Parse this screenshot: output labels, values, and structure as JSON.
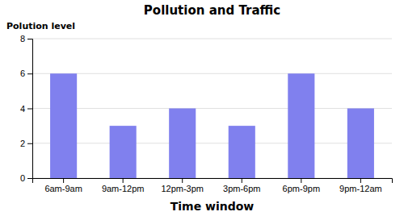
{
  "chart_data": {
    "type": "bar",
    "title": "Pollution and Traffic",
    "xlabel": "Time window",
    "ylabel": "Polution level",
    "categories": [
      "6am-9am",
      "9am-12pm",
      "12pm-3pm",
      "3pm-6pm",
      "6pm-9pm",
      "9pm-12am"
    ],
    "values": [
      6,
      3,
      4,
      3,
      6,
      4
    ],
    "color": "#8080EE",
    "ylim": [
      0,
      8
    ],
    "yticks": [
      0,
      2,
      4,
      6,
      8
    ],
    "grid": true
  }
}
